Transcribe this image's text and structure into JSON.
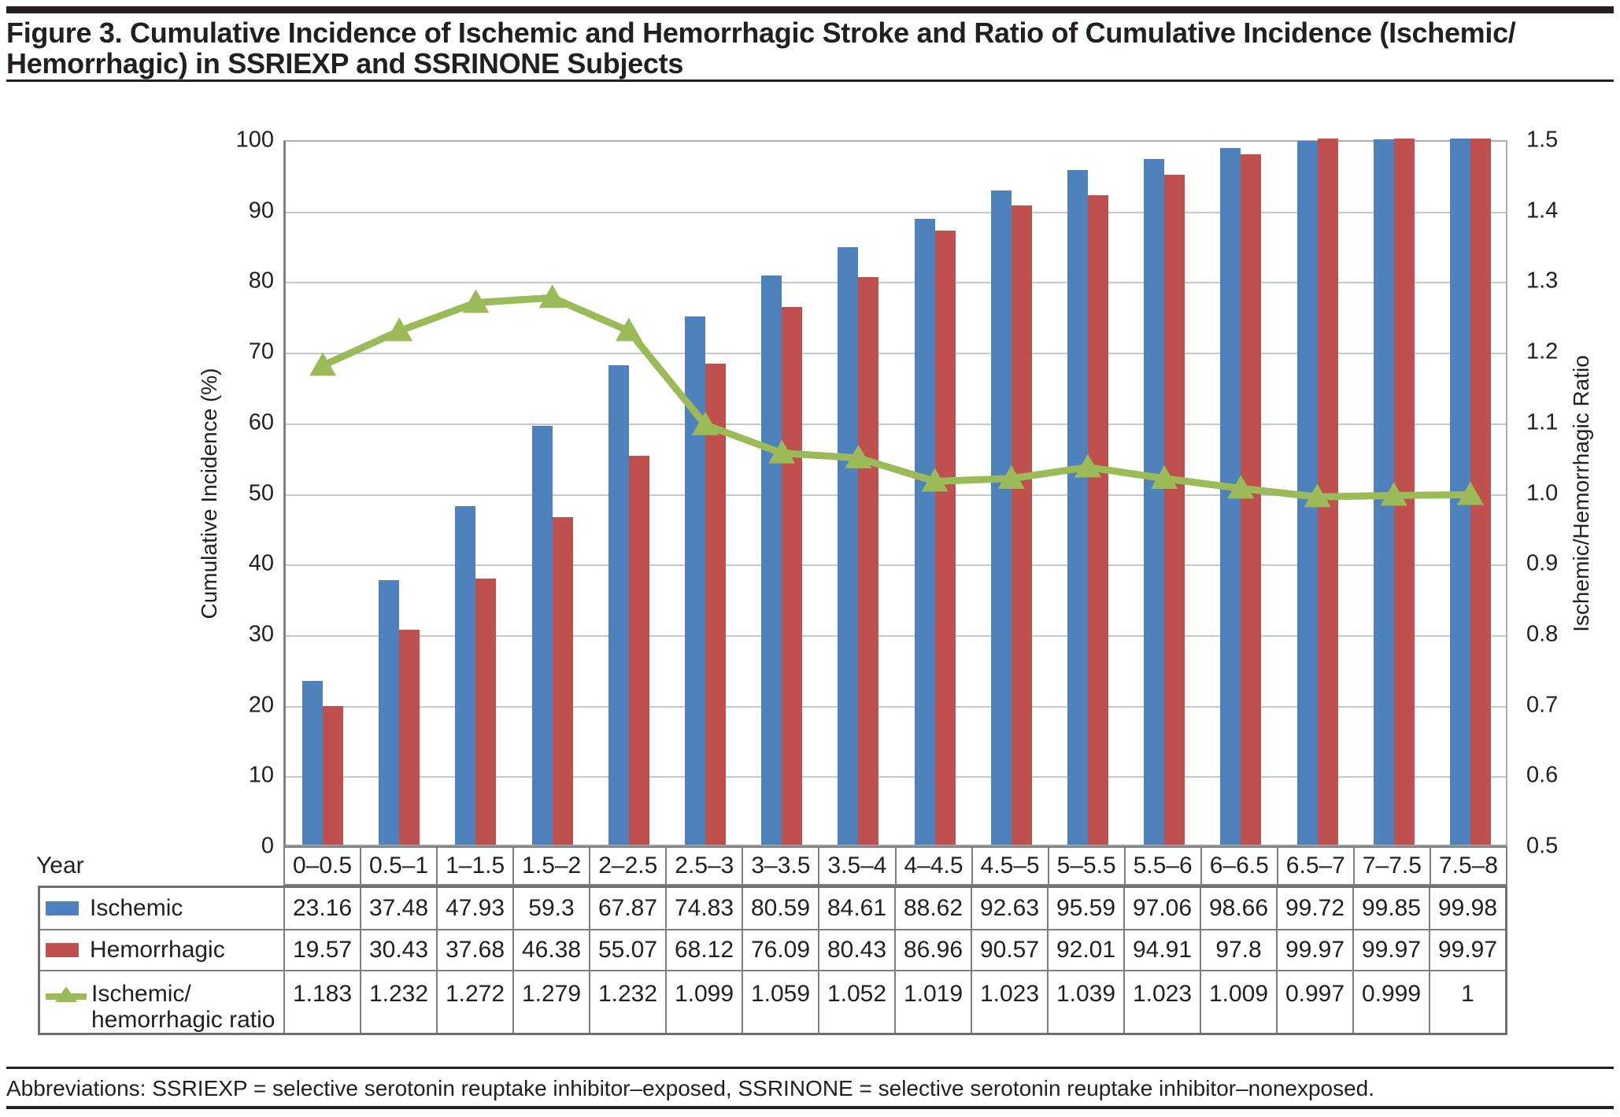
{
  "figure": {
    "title_lines": [
      "Figure 3. Cumulative Incidence of Ischemic and Hemorrhagic Stroke and Ratio of Cumulative Incidence (Ischemic/",
      "Hemorrhagic) in SSRIEXP and SSRINONE Subjects"
    ],
    "footnote": "Abbreviations: SSRIEXP = selective serotonin reuptake inhibitor–exposed, SSRINONE = selective serotonin reuptake inhibitor–nonexposed."
  },
  "chart_data": {
    "type": "bar+line combo",
    "categories": [
      "0–0.5",
      "0.5–1",
      "1–1.5",
      "1.5–2",
      "2–2.5",
      "2.5–3",
      "3–3.5",
      "3.5–4",
      "4–4.5",
      "4.5–5",
      "5–5.5",
      "5.5–6",
      "6–6.5",
      "6.5–7",
      "7–7.5",
      "7.5–8"
    ],
    "x_axis_label": "Year",
    "series": [
      {
        "name": "Ischemic",
        "type": "bar",
        "axis": "left",
        "color": "#4F81BD",
        "values": [
          23.16,
          37.48,
          47.93,
          59.3,
          67.87,
          74.83,
          80.59,
          84.61,
          88.62,
          92.63,
          95.59,
          97.06,
          98.66,
          99.72,
          99.85,
          99.98
        ]
      },
      {
        "name": "Hemorrhagic",
        "type": "bar",
        "axis": "left",
        "color": "#C0504D",
        "values": [
          19.57,
          30.43,
          37.68,
          46.38,
          55.07,
          68.12,
          76.09,
          80.43,
          86.96,
          90.57,
          92.01,
          94.91,
          97.8,
          99.97,
          99.97,
          99.97
        ]
      },
      {
        "name": "Ischemic/hemorrhagic ratio",
        "type": "line",
        "axis": "right",
        "color": "#9BBB59",
        "marker": "triangle",
        "values": [
          1.183,
          1.232,
          1.272,
          1.279,
          1.232,
          1.099,
          1.059,
          1.052,
          1.019,
          1.023,
          1.039,
          1.023,
          1.009,
          0.997,
          0.999,
          1
        ]
      }
    ],
    "left_axis": {
      "label": "Cumulative Incidence (%)",
      "min": 0,
      "max": 100,
      "step": 10,
      "tick_labels": [
        "0",
        "10",
        "20",
        "30",
        "40",
        "50",
        "60",
        "70",
        "80",
        "90",
        "100"
      ]
    },
    "right_axis": {
      "label": "Ischemic/Hemorrhagic Ratio",
      "min": 0.5,
      "max": 1.5,
      "step": 0.1,
      "tick_labels": [
        "0.5",
        "0.6",
        "0.7",
        "0.8",
        "0.9",
        "1.0",
        "1.1",
        "1.2",
        "1.3",
        "1.4",
        "1.5"
      ]
    },
    "grid": "horizontal-only",
    "legend_position": "table-left"
  },
  "table": {
    "year_label": "Year",
    "rows": [
      {
        "label": "Ischemic",
        "marker": "bar",
        "color": "#4F81BD",
        "values": [
          "23.16",
          "37.48",
          "47.93",
          "59.3",
          "67.87",
          "74.83",
          "80.59",
          "84.61",
          "88.62",
          "92.63",
          "95.59",
          "97.06",
          "98.66",
          "99.72",
          "99.85",
          "99.98"
        ]
      },
      {
        "label": "Hemorrhagic",
        "marker": "bar",
        "color": "#C0504D",
        "values": [
          "19.57",
          "30.43",
          "37.68",
          "46.38",
          "55.07",
          "68.12",
          "76.09",
          "80.43",
          "86.96",
          "90.57",
          "92.01",
          "94.91",
          "97.8",
          "99.97",
          "99.97",
          "99.97"
        ]
      },
      {
        "label_lines": [
          "Ischemic/",
          "hemorrhagic ratio"
        ],
        "marker": "line-triangle",
        "color": "#9BBB59",
        "values": [
          "1.183",
          "1.232",
          "1.272",
          "1.279",
          "1.232",
          "1.099",
          "1.059",
          "1.052",
          "1.019",
          "1.023",
          "1.039",
          "1.023",
          "1.009",
          "0.997",
          "0.999",
          "1"
        ]
      }
    ]
  }
}
